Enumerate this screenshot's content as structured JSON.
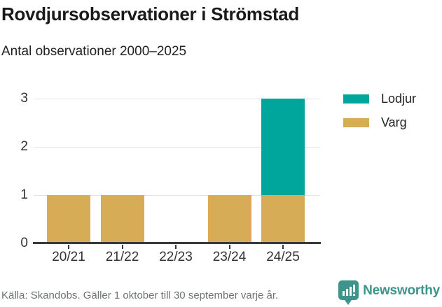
{
  "header": {
    "title": "Rovdjursobservationer i Strömstad",
    "subtitle": "Antal observationer 2000–2025"
  },
  "footer": {
    "source": "Källa: Skandobs. Gäller 1 oktober till 30 september varje år.",
    "brand": "Newsworthy",
    "brand_icon": "bar-chart-speech-bubble-icon",
    "brand_color": "#3e948b"
  },
  "colors": {
    "lodjur": "#00a59b",
    "varg": "#d7ac57",
    "gridline": "#e4e4e4",
    "axis": "#3a3a3a",
    "tick_text": "#333333",
    "source_text": "#6d7275"
  },
  "chart_data": {
    "type": "bar",
    "stacked": true,
    "title": "Rovdjursobservationer i Strömstad",
    "subtitle": "Antal observationer 2000–2025",
    "categories": [
      "20/21",
      "21/22",
      "22/23",
      "23/24",
      "24/25"
    ],
    "series": [
      {
        "name": "Varg",
        "color": "#d7ac57",
        "values": [
          1,
          1,
          0,
          1,
          1
        ]
      },
      {
        "name": "Lodjur",
        "color": "#00a59b",
        "values": [
          0,
          0,
          0,
          0,
          2
        ]
      }
    ],
    "totals": [
      1,
      1,
      0,
      1,
      3
    ],
    "legend_order": [
      "Lodjur",
      "Varg"
    ],
    "legend_position": "right-top",
    "xlabel": "",
    "ylabel": "",
    "ylim": [
      0,
      3
    ],
    "yticks": [
      0,
      1,
      2,
      3
    ],
    "grid": "horizontal"
  }
}
